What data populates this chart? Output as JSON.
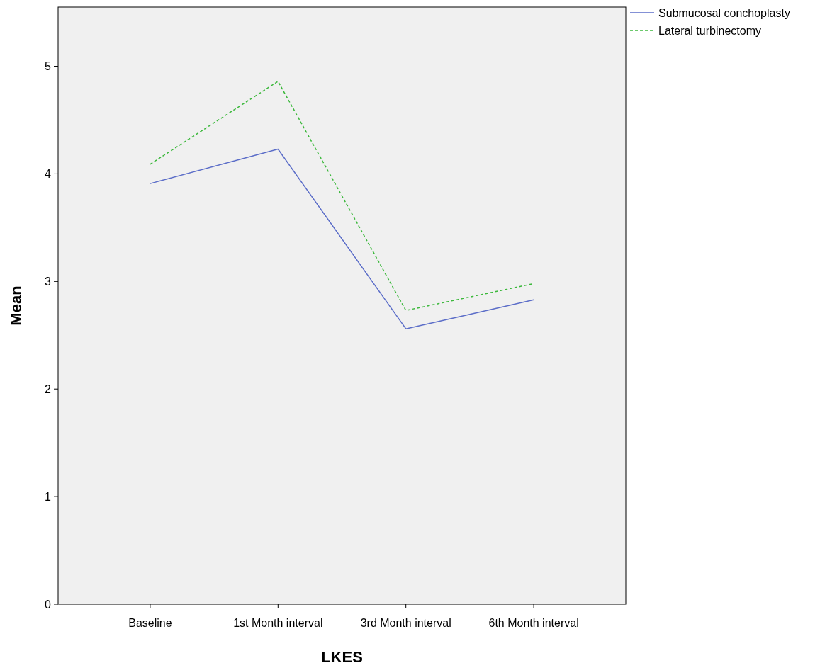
{
  "chart_data": {
    "type": "line",
    "xlabel": "LKES",
    "ylabel": "Mean",
    "categories": [
      "Baseline",
      "1st Month interval",
      "3rd Month interval",
      "6th Month interval"
    ],
    "series": [
      {
        "name": "Submucosal conchoplasty",
        "color": "#5b6dc8",
        "line_style": "solid",
        "values": [
          3.91,
          4.23,
          2.56,
          2.83
        ]
      },
      {
        "name": "Lateral turbinectomy",
        "color": "#3cb83c",
        "line_style": "dashed",
        "values": [
          4.09,
          4.86,
          2.73,
          2.98
        ]
      }
    ],
    "ylim": [
      0,
      5.55
    ],
    "yticks": [
      0,
      1,
      2,
      3,
      4,
      5
    ],
    "grid": false,
    "legend": "top right",
    "marker": "none"
  }
}
